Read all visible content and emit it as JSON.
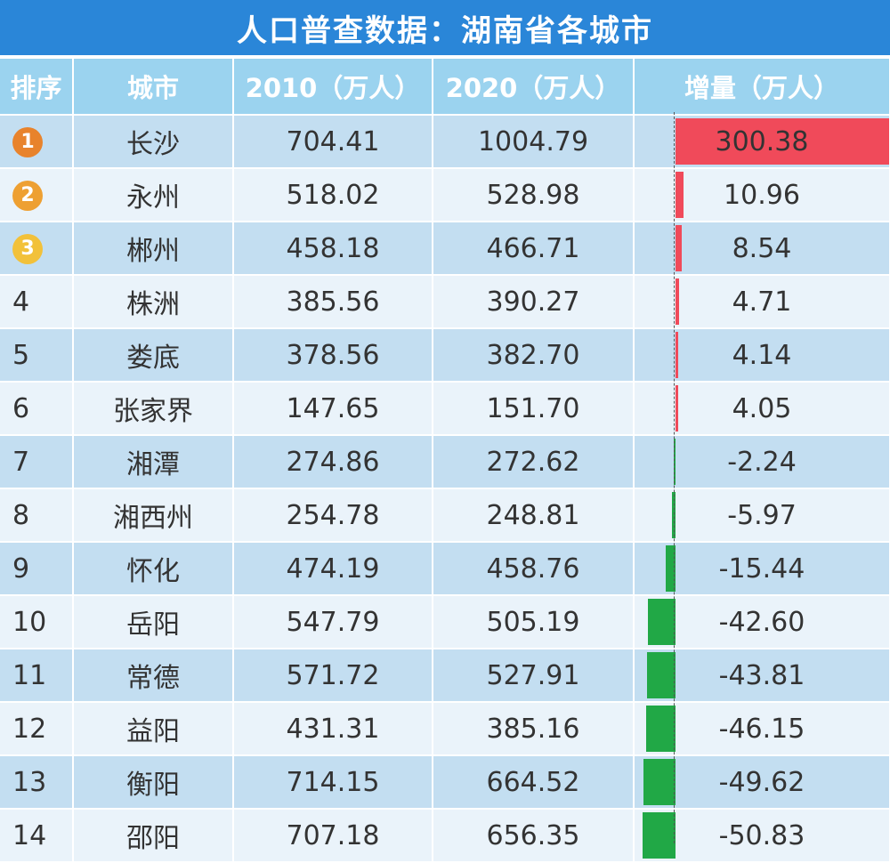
{
  "title": "人口普查数据：湖南省各城市",
  "headers": [
    "排序",
    "城市",
    "2010（万人）",
    "2020（万人）",
    "增量（万人）"
  ],
  "colors": {
    "banner": "#2a86d8",
    "header": "#9bd3ef",
    "increase_bar": "#f04a5a",
    "decrease_bar": "#21a846",
    "medal_1": "#e8832c",
    "medal_2": "#eea032",
    "medal_3": "#f2c13a"
  },
  "rows": [
    {
      "rank": "1",
      "medal": "medal_1",
      "city": "长沙",
      "y2010": "704.41",
      "y2020": "1004.79",
      "increase": "300.38",
      "increase_value": 300.38
    },
    {
      "rank": "2",
      "medal": "medal_2",
      "city": "永州",
      "y2010": "518.02",
      "y2020": "528.98",
      "increase": "10.96",
      "increase_value": 10.96
    },
    {
      "rank": "3",
      "medal": "medal_3",
      "city": "郴州",
      "y2010": "458.18",
      "y2020": "466.71",
      "increase": "8.54",
      "increase_value": 8.54
    },
    {
      "rank": "4",
      "city": "株洲",
      "y2010": "385.56",
      "y2020": "390.27",
      "increase": "4.71",
      "increase_value": 4.71
    },
    {
      "rank": "5",
      "city": "娄底",
      "y2010": "378.56",
      "y2020": "382.70",
      "increase": "4.14",
      "increase_value": 4.14
    },
    {
      "rank": "6",
      "city": "张家界",
      "y2010": "147.65",
      "y2020": "151.70",
      "increase": "4.05",
      "increase_value": 4.05
    },
    {
      "rank": "7",
      "city": "湘潭",
      "y2010": "274.86",
      "y2020": "272.62",
      "increase": "-2.24",
      "increase_value": -2.24
    },
    {
      "rank": "8",
      "city": "湘西州",
      "y2010": "254.78",
      "y2020": "248.81",
      "increase": "-5.97",
      "increase_value": -5.97
    },
    {
      "rank": "9",
      "city": "怀化",
      "y2010": "474.19",
      "y2020": "458.76",
      "increase": "-15.44",
      "increase_value": -15.44
    },
    {
      "rank": "10",
      "city": "岳阳",
      "y2010": "547.79",
      "y2020": "505.19",
      "increase": "-42.60",
      "increase_value": -42.6
    },
    {
      "rank": "11",
      "city": "常德",
      "y2010": "571.72",
      "y2020": "527.91",
      "increase": "-43.81",
      "increase_value": -43.81
    },
    {
      "rank": "12",
      "city": "益阳",
      "y2010": "431.31",
      "y2020": "385.16",
      "increase": "-46.15",
      "increase_value": -46.15
    },
    {
      "rank": "13",
      "city": "衡阳",
      "y2010": "714.15",
      "y2020": "664.52",
      "increase": "-49.62",
      "increase_value": -49.62
    },
    {
      "rank": "14",
      "city": "邵阳",
      "y2010": "707.18",
      "y2020": "656.35",
      "increase": "-50.83",
      "increase_value": -50.83
    }
  ]
}
